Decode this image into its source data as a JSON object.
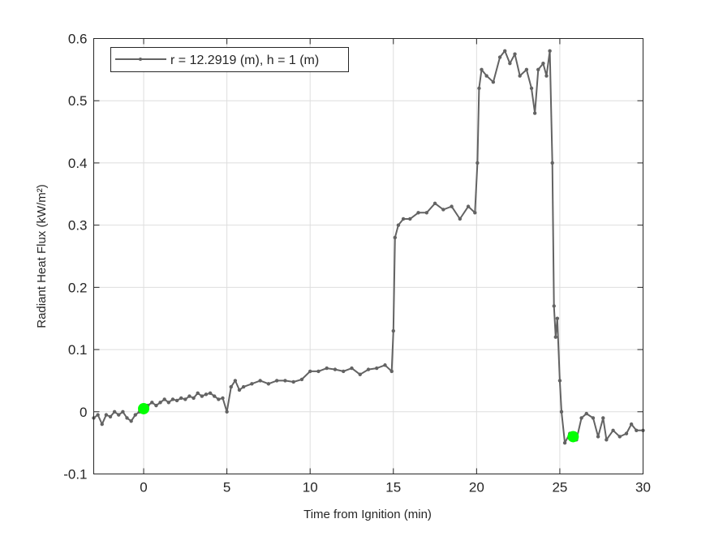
{
  "chart_data": {
    "type": "line",
    "xlabel": "Time from Ignition (min)",
    "ylabel": "Radiant Heat Flux (kW/m²)",
    "xlim": [
      -3,
      30
    ],
    "ylim": [
      -0.1,
      0.6
    ],
    "xticks": [
      0,
      5,
      10,
      15,
      20,
      25,
      30
    ],
    "xtick_labels": [
      "0",
      "5",
      "10",
      "15",
      "20",
      "25",
      "30"
    ],
    "yticks": [
      -0.1,
      0,
      0.1,
      0.2,
      0.3,
      0.4,
      0.5,
      0.6
    ],
    "ytick_labels": [
      "-0.1",
      "0",
      "0.1",
      "0.2",
      "0.3",
      "0.4",
      "0.5",
      "0.6"
    ],
    "grid": true,
    "legend_position": "top-left",
    "series": [
      {
        "name": "r = 12.2919 (m), h = 1 (m)",
        "color": "#636363",
        "marker": "dot",
        "x": [
          -3,
          -2.75,
          -2.5,
          -2.25,
          -2,
          -1.75,
          -1.5,
          -1.25,
          -1,
          -0.75,
          -0.5,
          -0.25,
          0,
          0.25,
          0.5,
          0.75,
          1,
          1.25,
          1.5,
          1.75,
          2,
          2.25,
          2.5,
          2.75,
          3,
          3.25,
          3.5,
          3.75,
          4,
          4.25,
          4.5,
          4.75,
          5,
          5.25,
          5.5,
          5.75,
          6,
          6.5,
          7,
          7.5,
          8,
          8.5,
          9,
          9.5,
          10,
          10.5,
          11,
          11.5,
          12,
          12.5,
          13,
          13.5,
          14,
          14.5,
          14.9,
          15,
          15.1,
          15.3,
          15.6,
          16,
          16.5,
          17,
          17.5,
          18,
          18.5,
          19,
          19.5,
          19.9,
          20.05,
          20.15,
          20.3,
          20.6,
          21,
          21.4,
          21.7,
          22,
          22.3,
          22.6,
          23,
          23.3,
          23.5,
          23.7,
          24,
          24.2,
          24.4,
          24.55,
          24.65,
          24.75,
          24.85,
          25,
          25.1,
          25.3,
          25.6,
          26,
          26.3,
          26.6,
          27,
          27.3,
          27.6,
          27.8,
          28.2,
          28.6,
          29,
          29.3,
          29.6,
          30
        ],
        "y": [
          -0.01,
          -0.005,
          -0.02,
          -0.005,
          -0.008,
          0,
          -0.005,
          0,
          -0.01,
          -0.015,
          -0.005,
          0,
          0.005,
          0.01,
          0.015,
          0.01,
          0.015,
          0.02,
          0.015,
          0.02,
          0.018,
          0.022,
          0.02,
          0.025,
          0.022,
          0.03,
          0.025,
          0.028,
          0.03,
          0.025,
          0.02,
          0.022,
          0,
          0.04,
          0.05,
          0.035,
          0.04,
          0.045,
          0.05,
          0.045,
          0.05,
          0.05,
          0.048,
          0.052,
          0.065,
          0.065,
          0.07,
          0.068,
          0.065,
          0.07,
          0.06,
          0.068,
          0.07,
          0.075,
          0.065,
          0.13,
          0.28,
          0.3,
          0.31,
          0.31,
          0.32,
          0.32,
          0.335,
          0.325,
          0.33,
          0.31,
          0.33,
          0.32,
          0.4,
          0.52,
          0.55,
          0.54,
          0.53,
          0.57,
          0.58,
          0.56,
          0.575,
          0.54,
          0.55,
          0.52,
          0.48,
          0.55,
          0.56,
          0.54,
          0.58,
          0.4,
          0.17,
          0.12,
          0.15,
          0.05,
          0,
          -0.05,
          -0.035,
          -0.045,
          -0.01,
          -0.003,
          -0.01,
          -0.04,
          -0.01,
          -0.045,
          -0.03,
          -0.04,
          -0.035,
          -0.02,
          -0.03,
          -0.03
        ]
      }
    ],
    "highlight_points": {
      "color": "#00ff00",
      "x": [
        0,
        25.8
      ],
      "y": [
        0.005,
        -0.04
      ]
    }
  }
}
